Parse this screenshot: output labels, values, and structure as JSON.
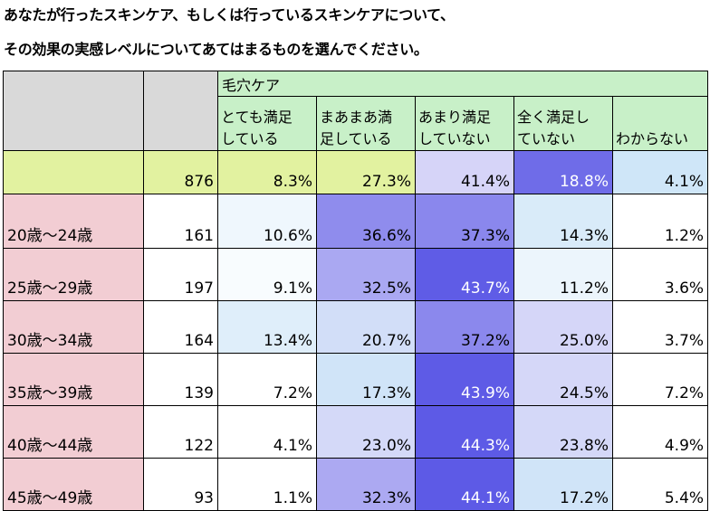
{
  "title_line1": "あなたが行ったスキンケア、もしくは行っているスキンケアについて、",
  "title_line2": "その効果の実感レベルについてあてはまるものを選んでください。",
  "colors": {
    "header_green": "#c8f0c8",
    "total_row": "#e2f2a0",
    "age_pink": "#f2cdd3",
    "header_gray": "#d9d9d9",
    "scale_low": "#ffffff",
    "scale_mid_blue": "#cfe6f8",
    "scale_purple_light": "#d6d4f8",
    "scale_purple_dark": "#5d5ae6"
  },
  "chart_data": {
    "type": "table",
    "group_header": "毛穴ケア",
    "columns": [
      "とても満足している",
      "まあまあ満足している",
      "あまり満足していない",
      "全く満足していない",
      "わからない"
    ],
    "column_lines": [
      [
        "とても満足",
        "している"
      ],
      [
        "まあまあ満",
        "足している"
      ],
      [
        "あまり満足",
        "していない"
      ],
      [
        "全く満足し",
        "ていない"
      ],
      [
        "",
        "わからない"
      ]
    ],
    "rows": [
      {
        "label": "",
        "n": "876",
        "values": [
          "8.3%",
          "27.3%",
          "41.4%",
          "18.8%",
          "4.1%"
        ]
      },
      {
        "label": "20歳～24歳",
        "n": "161",
        "values": [
          "10.6%",
          "36.6%",
          "37.3%",
          "14.3%",
          "1.2%"
        ]
      },
      {
        "label": "25歳～29歳",
        "n": "197",
        "values": [
          "9.1%",
          "32.5%",
          "43.7%",
          "11.2%",
          "3.6%"
        ]
      },
      {
        "label": "30歳～34歳",
        "n": "164",
        "values": [
          "13.4%",
          "20.7%",
          "37.2%",
          "25.0%",
          "3.7%"
        ]
      },
      {
        "label": "35歳～39歳",
        "n": "139",
        "values": [
          "7.2%",
          "17.3%",
          "43.9%",
          "24.5%",
          "7.2%"
        ]
      },
      {
        "label": "40歳～44歳",
        "n": "122",
        "values": [
          "4.1%",
          "23.0%",
          "44.3%",
          "23.8%",
          "4.9%"
        ]
      },
      {
        "label": "45歳～49歳",
        "n": "93",
        "values": [
          "1.1%",
          "32.3%",
          "44.1%",
          "17.2%",
          "5.4%"
        ]
      }
    ]
  }
}
